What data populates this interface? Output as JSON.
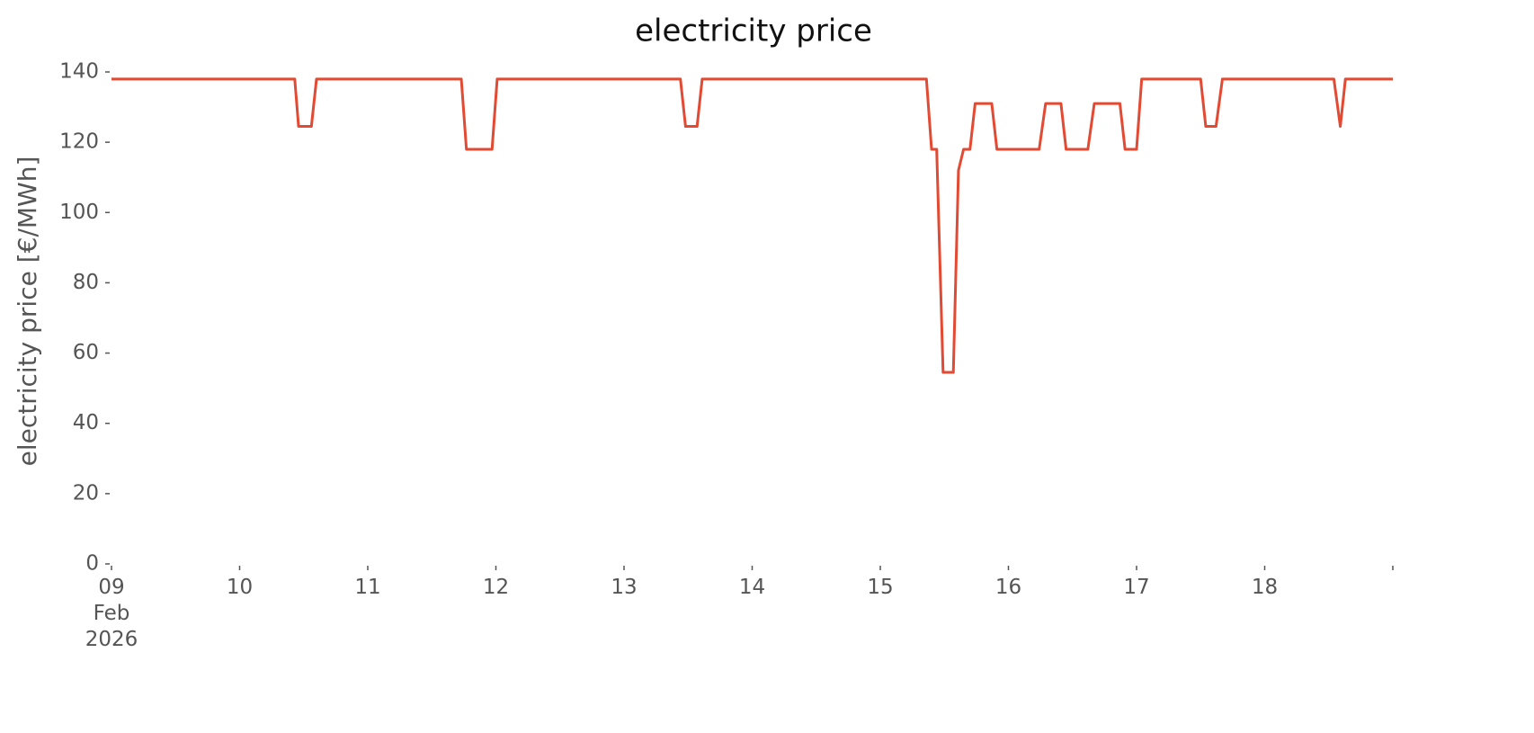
{
  "chart_data": {
    "type": "line",
    "title": "electricity price",
    "ylabel": "electricity price [€/MWh]",
    "color": "#e24a33",
    "x": [
      9.0,
      10.43,
      10.46,
      10.56,
      10.6,
      11.73,
      11.77,
      11.97,
      12.01,
      13.44,
      13.48,
      13.57,
      13.61,
      15.36,
      15.4,
      15.44,
      15.49,
      15.57,
      15.61,
      15.65,
      15.7,
      15.74,
      15.87,
      15.91,
      16.24,
      16.29,
      16.41,
      16.45,
      16.62,
      16.67,
      16.87,
      16.91,
      17.0,
      17.04,
      17.5,
      17.54,
      17.62,
      17.67,
      18.54,
      18.59,
      18.63,
      19.0
    ],
    "values": [
      138,
      138,
      124.5,
      124.5,
      138,
      138,
      118,
      118,
      138,
      138,
      124.5,
      124.5,
      138,
      138,
      118,
      118,
      54.5,
      54.5,
      112,
      118,
      118,
      131,
      131,
      118,
      118,
      131,
      131,
      118,
      118,
      131,
      131,
      118,
      118,
      138,
      138,
      124.5,
      124.5,
      138,
      138,
      124.5,
      138,
      138
    ],
    "xlim": [
      9,
      19
    ],
    "xticks": [
      {
        "value": 9,
        "label": "09\nFeb\n2026"
      },
      10,
      11,
      12,
      13,
      14,
      15,
      16,
      17,
      18,
      19
    ],
    "ylim": [
      0,
      140
    ],
    "yticks": [
      0,
      20,
      40,
      60,
      80,
      100,
      120,
      140
    ],
    "grid": false
  }
}
